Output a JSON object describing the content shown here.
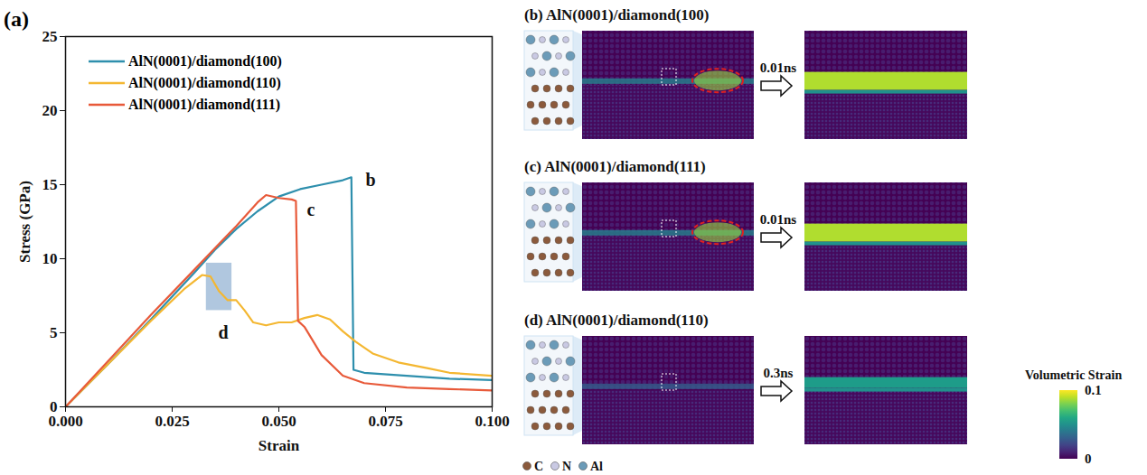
{
  "chart_data": {
    "type": "line",
    "panel_label": "(a)",
    "x_label": "Strain",
    "y_label": "Stress (GPa)",
    "xlim": [
      0,
      0.1
    ],
    "xticks": [
      {
        "value": 0,
        "label": "0.000"
      },
      {
        "value": 0.025,
        "label": "0.025"
      },
      {
        "value": 0.05,
        "label": "0.050"
      },
      {
        "value": 0.075,
        "label": "0.075"
      },
      {
        "value": 0.1,
        "label": "0.100"
      }
    ],
    "ylim": [
      0,
      25
    ],
    "yticks": [
      0,
      5,
      10,
      15,
      20,
      25
    ],
    "legend": "top-left",
    "series": [
      {
        "name": "AlN(0001)/diamond(100)",
        "color": "#2e8fad",
        "x": [
          0,
          0.01,
          0.02,
          0.03,
          0.035,
          0.04,
          0.045,
          0.05,
          0.055,
          0.06,
          0.065,
          0.067,
          0.0675,
          0.07,
          0.08,
          0.09,
          0.1
        ],
        "values": [
          0,
          2.9,
          5.9,
          9.0,
          10.6,
          12.0,
          13.2,
          14.2,
          14.7,
          15.0,
          15.3,
          15.5,
          2.5,
          2.3,
          2.1,
          1.9,
          1.8
        ]
      },
      {
        "name": "AlN(0001)/diamond(110)",
        "color": "#f4b731",
        "x": [
          0,
          0.01,
          0.02,
          0.028,
          0.032,
          0.034,
          0.036,
          0.038,
          0.04,
          0.042,
          0.044,
          0.047,
          0.05,
          0.053,
          0.056,
          0.059,
          0.062,
          0.065,
          0.068,
          0.072,
          0.078,
          0.085,
          0.09,
          0.1
        ],
        "values": [
          0,
          2.9,
          5.8,
          8.0,
          8.9,
          8.8,
          7.8,
          7.2,
          7.2,
          6.5,
          5.7,
          5.5,
          5.7,
          5.7,
          6.0,
          6.2,
          5.9,
          5.1,
          4.4,
          3.6,
          3.0,
          2.6,
          2.3,
          2.1
        ]
      },
      {
        "name": "AlN(0001)/diamond(111)",
        "color": "#e85a3a",
        "x": [
          0,
          0.01,
          0.02,
          0.03,
          0.04,
          0.045,
          0.047,
          0.05,
          0.053,
          0.054,
          0.0545,
          0.056,
          0.06,
          0.065,
          0.07,
          0.08,
          0.09,
          0.1
        ],
        "values": [
          0,
          3.1,
          6.2,
          9.2,
          12.2,
          13.8,
          14.3,
          14.1,
          14.0,
          13.9,
          5.8,
          5.4,
          3.5,
          2.1,
          1.6,
          1.3,
          1.2,
          1.1
        ]
      }
    ],
    "annotations": [
      {
        "text": "b",
        "x": 0.0715,
        "y": 15.3
      },
      {
        "text": "c",
        "x": 0.0575,
        "y": 13.3
      },
      {
        "text": "d",
        "x": 0.037,
        "y": 5.0
      }
    ],
    "highlight_region": {
      "x": [
        0.033,
        0.039
      ],
      "y": [
        6.5,
        9.7
      ]
    }
  },
  "panels": [
    {
      "label": "(b)",
      "title": "AlN(0001)/diamond(100)",
      "time": "0.01ns"
    },
    {
      "label": "(c)",
      "title": "AlN(0001)/diamond(111)",
      "time": "0.01ns"
    },
    {
      "label": "(d)",
      "title": "AlN(0001)/diamond(110)",
      "time": "0.3ns"
    }
  ],
  "colorbar": {
    "title": "Volumetric Strain",
    "range": [
      0,
      0.1
    ],
    "ticks": [
      0,
      0.1
    ]
  },
  "atom_legend": [
    {
      "label": "C",
      "color": "#8b5a3c"
    },
    {
      "label": "N",
      "color": "#c9c9e3"
    },
    {
      "label": "Al",
      "color": "#6b9bb8"
    }
  ]
}
